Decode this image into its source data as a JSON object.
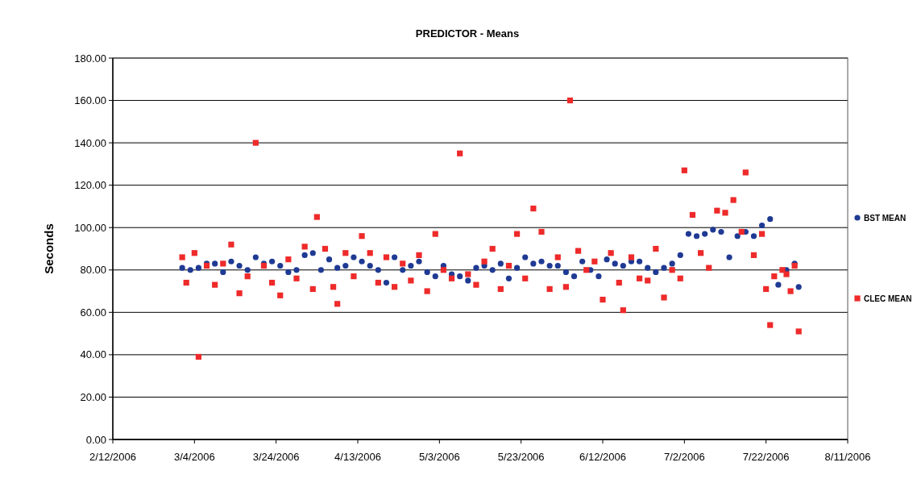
{
  "chart_data": {
    "type": "scatter",
    "title": "PREDICTOR - Means",
    "ylabel": "Seconds",
    "legend": "right",
    "grid": "y",
    "xlim": [
      "2006-02-12",
      "2006-08-11"
    ],
    "xticks": [
      {
        "value": "2006-02-12",
        "label": "2/12/2006"
      },
      {
        "value": "2006-03-04",
        "label": "3/4/2006"
      },
      {
        "value": "2006-03-24",
        "label": "3/24/2006"
      },
      {
        "value": "2006-04-13",
        "label": "4/13/2006"
      },
      {
        "value": "2006-05-03",
        "label": "5/3/2006"
      },
      {
        "value": "2006-05-23",
        "label": "5/23/2006"
      },
      {
        "value": "2006-06-12",
        "label": "6/12/2006"
      },
      {
        "value": "2006-07-02",
        "label": "7/2/2006"
      },
      {
        "value": "2006-07-22",
        "label": "7/22/2006"
      },
      {
        "value": "2006-08-11",
        "label": "8/11/2006"
      }
    ],
    "ylim": [
      0,
      180
    ],
    "yticks": [
      {
        "value": 0,
        "label": "0.00"
      },
      {
        "value": 20,
        "label": "20.00"
      },
      {
        "value": 40,
        "label": "40.00"
      },
      {
        "value": 60,
        "label": "60.00"
      },
      {
        "value": 80,
        "label": "80.00"
      },
      {
        "value": 100,
        "label": "100.00"
      },
      {
        "value": 120,
        "label": "120.00"
      },
      {
        "value": 140,
        "label": "140.00"
      },
      {
        "value": 160,
        "label": "160.00"
      },
      {
        "value": 180,
        "label": "180.00"
      }
    ],
    "series": [
      {
        "name": "BST MEAN",
        "color": "#1f3a93",
        "marker": "circle",
        "x": [
          "2006-03-01",
          "2006-03-03",
          "2006-03-05",
          "2006-03-07",
          "2006-03-09",
          "2006-03-11",
          "2006-03-13",
          "2006-03-15",
          "2006-03-17",
          "2006-03-19",
          "2006-03-21",
          "2006-03-23",
          "2006-03-25",
          "2006-03-27",
          "2006-03-29",
          "2006-03-31",
          "2006-04-02",
          "2006-04-04",
          "2006-04-06",
          "2006-04-08",
          "2006-04-10",
          "2006-04-12",
          "2006-04-14",
          "2006-04-16",
          "2006-04-18",
          "2006-04-20",
          "2006-04-22",
          "2006-04-24",
          "2006-04-26",
          "2006-04-28",
          "2006-04-30",
          "2006-05-02",
          "2006-05-04",
          "2006-05-06",
          "2006-05-08",
          "2006-05-10",
          "2006-05-12",
          "2006-05-14",
          "2006-05-16",
          "2006-05-18",
          "2006-05-20",
          "2006-05-22",
          "2006-05-24",
          "2006-05-26",
          "2006-05-28",
          "2006-05-30",
          "2006-06-01",
          "2006-06-03",
          "2006-06-05",
          "2006-06-07",
          "2006-06-09",
          "2006-06-11",
          "2006-06-13",
          "2006-06-15",
          "2006-06-17",
          "2006-06-19",
          "2006-06-21",
          "2006-06-23",
          "2006-06-25",
          "2006-06-27",
          "2006-06-29",
          "2006-07-01",
          "2006-07-03",
          "2006-07-05",
          "2006-07-07",
          "2006-07-09",
          "2006-07-11",
          "2006-07-13",
          "2006-07-15",
          "2006-07-17",
          "2006-07-19",
          "2006-07-21",
          "2006-07-23",
          "2006-07-25",
          "2006-07-27",
          "2006-07-29",
          "2006-07-30"
        ],
        "values": [
          81,
          80,
          81,
          83,
          83,
          79,
          84,
          82,
          80,
          86,
          83,
          84,
          82,
          79,
          80,
          87,
          88,
          80,
          85,
          81,
          82,
          86,
          84,
          82,
          80,
          74,
          86,
          80,
          82,
          84,
          79,
          77,
          82,
          78,
          77,
          75,
          81,
          82,
          80,
          83,
          76,
          81,
          86,
          83,
          84,
          82,
          82,
          79,
          77,
          84,
          80,
          77,
          85,
          83,
          82,
          84,
          84,
          81,
          79,
          81,
          83,
          87,
          97,
          96,
          97,
          99,
          98,
          86,
          96,
          98,
          96,
          101,
          104,
          73,
          80,
          83,
          72
        ]
      },
      {
        "name": "CLEC MEAN",
        "color": "#ee2a2a",
        "marker": "square",
        "x": [
          "2006-03-01",
          "2006-03-02",
          "2006-03-04",
          "2006-03-05",
          "2006-03-07",
          "2006-03-09",
          "2006-03-11",
          "2006-03-13",
          "2006-03-15",
          "2006-03-17",
          "2006-03-19",
          "2006-03-21",
          "2006-03-23",
          "2006-03-25",
          "2006-03-27",
          "2006-03-29",
          "2006-03-31",
          "2006-04-02",
          "2006-04-03",
          "2006-04-05",
          "2006-04-07",
          "2006-04-08",
          "2006-04-10",
          "2006-04-12",
          "2006-04-14",
          "2006-04-16",
          "2006-04-18",
          "2006-04-20",
          "2006-04-22",
          "2006-04-24",
          "2006-04-26",
          "2006-04-28",
          "2006-04-30",
          "2006-05-02",
          "2006-05-04",
          "2006-05-06",
          "2006-05-08",
          "2006-05-10",
          "2006-05-12",
          "2006-05-14",
          "2006-05-16",
          "2006-05-18",
          "2006-05-20",
          "2006-05-22",
          "2006-05-24",
          "2006-05-26",
          "2006-05-28",
          "2006-05-30",
          "2006-06-01",
          "2006-06-03",
          "2006-06-04",
          "2006-06-06",
          "2006-06-08",
          "2006-06-10",
          "2006-06-12",
          "2006-06-14",
          "2006-06-16",
          "2006-06-17",
          "2006-06-19",
          "2006-06-21",
          "2006-06-23",
          "2006-06-25",
          "2006-06-27",
          "2006-06-29",
          "2006-07-01",
          "2006-07-02",
          "2006-07-04",
          "2006-07-06",
          "2006-07-08",
          "2006-07-10",
          "2006-07-12",
          "2006-07-14",
          "2006-07-16",
          "2006-07-17",
          "2006-07-19",
          "2006-07-21",
          "2006-07-22",
          "2006-07-23",
          "2006-07-24",
          "2006-07-26",
          "2006-07-27",
          "2006-07-28",
          "2006-07-29",
          "2006-07-30"
        ],
        "values": [
          86,
          74,
          88,
          39,
          82,
          73,
          83,
          92,
          69,
          77,
          140,
          82,
          74,
          68,
          85,
          76,
          91,
          71,
          105,
          90,
          72,
          64,
          88,
          77,
          96,
          88,
          74,
          86,
          72,
          83,
          75,
          87,
          70,
          97,
          80,
          76,
          135,
          78,
          73,
          84,
          90,
          71,
          82,
          97,
          76,
          109,
          98,
          71,
          86,
          72,
          160,
          89,
          80,
          84,
          66,
          88,
          74,
          61,
          86,
          76,
          75,
          90,
          67,
          80,
          76,
          127,
          106,
          88,
          81,
          108,
          107,
          113,
          98,
          126,
          87,
          97,
          71,
          54,
          77,
          80,
          78,
          70,
          82,
          51
        ]
      }
    ]
  }
}
